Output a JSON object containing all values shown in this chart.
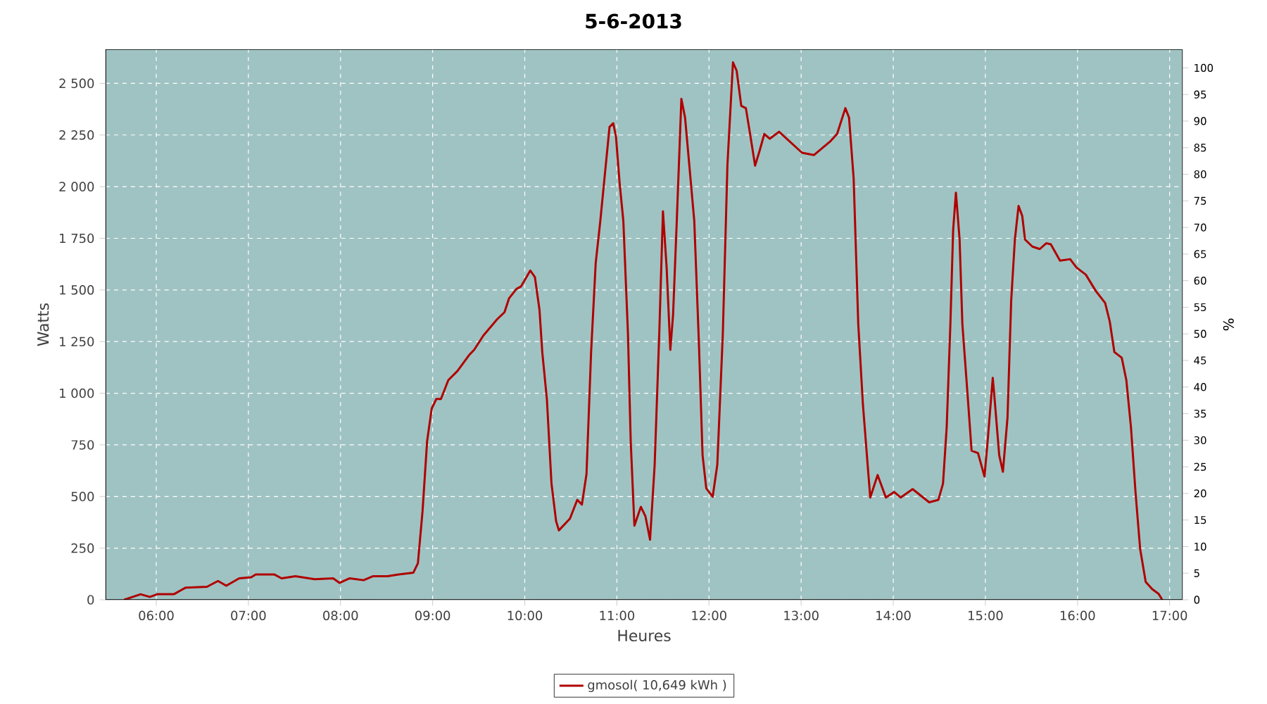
{
  "chart_data": {
    "type": "line",
    "title": "5-6-2013",
    "xlabel": "Heures",
    "ylabel": "Watts",
    "y2label": "%",
    "x": [
      5.65,
      5.83,
      5.93,
      6.01,
      6.19,
      6.32,
      6.55,
      6.67,
      6.76,
      6.9,
      7.03,
      7.08,
      7.28,
      7.36,
      7.51,
      7.72,
      7.92,
      7.99,
      8.1,
      8.25,
      8.35,
      8.51,
      8.63,
      8.79,
      8.84,
      8.89,
      8.94,
      8.99,
      9.04,
      9.09,
      9.17,
      9.27,
      9.4,
      9.45,
      9.55,
      9.7,
      9.78,
      9.83,
      9.91,
      9.96,
      10.06,
      10.11,
      10.16,
      10.19,
      10.24,
      10.29,
      10.34,
      10.37,
      10.49,
      10.57,
      10.62,
      10.67,
      10.72,
      10.77,
      10.82,
      10.87,
      10.92,
      10.96,
      10.99,
      11.03,
      11.07,
      11.12,
      11.15,
      11.19,
      11.26,
      11.31,
      11.36,
      11.41,
      11.46,
      11.5,
      11.54,
      11.58,
      11.61,
      11.65,
      11.7,
      11.74,
      11.79,
      11.84,
      11.89,
      11.93,
      11.97,
      12.04,
      12.09,
      12.15,
      12.2,
      12.26,
      12.3,
      12.35,
      12.4,
      12.45,
      12.5,
      12.55,
      12.6,
      12.66,
      12.76,
      13.01,
      13.14,
      13.32,
      13.39,
      13.48,
      13.52,
      13.57,
      13.62,
      13.67,
      13.73,
      13.75,
      13.83,
      13.92,
      14.01,
      14.08,
      14.21,
      14.39,
      14.49,
      14.54,
      14.58,
      14.62,
      14.65,
      14.68,
      14.72,
      14.75,
      14.81,
      14.85,
      14.92,
      14.99,
      15.02,
      15.08,
      15.1,
      15.15,
      15.19,
      15.24,
      15.28,
      15.32,
      15.36,
      15.4,
      15.43,
      15.51,
      15.59,
      15.66,
      15.71,
      15.81,
      15.92,
      15.99,
      16.09,
      16.2,
      16.3,
      16.35,
      16.4,
      16.48,
      16.53,
      16.58,
      16.63,
      16.68,
      16.74,
      16.81,
      16.88,
      16.92
    ],
    "series": [
      {
        "name": "gmosol( 10,649 kWh )",
        "color": "#b00000",
        "values": [
          0,
          27,
          14,
          27,
          27,
          59,
          63,
          91,
          68,
          104,
          109,
          123,
          123,
          104,
          114,
          100,
          104,
          82,
          104,
          95,
          114,
          114,
          123,
          131,
          177,
          427,
          768,
          926,
          972,
          972,
          1063,
          1108,
          1187,
          1210,
          1279,
          1358,
          1392,
          1460,
          1505,
          1517,
          1594,
          1562,
          1403,
          1199,
          972,
          563,
          381,
          336,
          393,
          484,
          461,
          608,
          1199,
          1630,
          1834,
          2062,
          2289,
          2307,
          2243,
          2016,
          1834,
          1290,
          768,
          359,
          450,
          404,
          291,
          654,
          1290,
          1880,
          1608,
          1210,
          1381,
          1834,
          2425,
          2334,
          2084,
          1834,
          1245,
          700,
          540,
          499,
          654,
          1290,
          2107,
          2602,
          2561,
          2391,
          2380,
          2243,
          2102,
          2175,
          2255,
          2232,
          2266,
          2164,
          2153,
          2221,
          2255,
          2380,
          2334,
          2039,
          1335,
          949,
          608,
          495,
          604,
          495,
          522,
          495,
          536,
          472,
          484,
          563,
          836,
          1335,
          1790,
          1971,
          1744,
          1335,
          972,
          722,
          710,
          597,
          745,
          1074,
          972,
          700,
          620,
          881,
          1448,
          1744,
          1907,
          1858,
          1744,
          1710,
          1698,
          1726,
          1721,
          1642,
          1649,
          1608,
          1574,
          1494,
          1437,
          1347,
          1199,
          1172,
          1063,
          836,
          518,
          245,
          87,
          52,
          29,
          0
        ]
      }
    ],
    "xlim": [
      5.45,
      17.14
    ],
    "xticks": [
      {
        "value": 6,
        "label": "06:00"
      },
      {
        "value": 7,
        "label": "07:00"
      },
      {
        "value": 8,
        "label": "08:00"
      },
      {
        "value": 9,
        "label": "09:00"
      },
      {
        "value": 10,
        "label": "10:00"
      },
      {
        "value": 11,
        "label": "11:00"
      },
      {
        "value": 12,
        "label": "12:00"
      },
      {
        "value": 13,
        "label": "13:00"
      },
      {
        "value": 14,
        "label": "14:00"
      },
      {
        "value": 15,
        "label": "15:00"
      },
      {
        "value": 16,
        "label": "16:00"
      },
      {
        "value": 17,
        "label": "17:00"
      }
    ],
    "ylim": [
      0,
      2665
    ],
    "yticks": [
      0,
      250,
      500,
      750,
      {
        "value": 1000,
        "label": "1 000"
      },
      {
        "value": 1250,
        "label": "1 250"
      },
      {
        "value": 1500,
        "label": "1 500"
      },
      {
        "value": 1750,
        "label": "1 750"
      },
      {
        "value": 2000,
        "label": "2 000"
      },
      {
        "value": 2250,
        "label": "2 250"
      },
      {
        "value": 2500,
        "label": "2 500"
      }
    ],
    "y2lim": [
      0,
      103.5
    ],
    "y2ticks": [
      0,
      5,
      10,
      15,
      20,
      25,
      30,
      35,
      40,
      45,
      50,
      55,
      60,
      65,
      70,
      75,
      80,
      85,
      90,
      95,
      100
    ],
    "grid": true,
    "legend": "bottom",
    "marker": "none",
    "line_style": "solid"
  }
}
